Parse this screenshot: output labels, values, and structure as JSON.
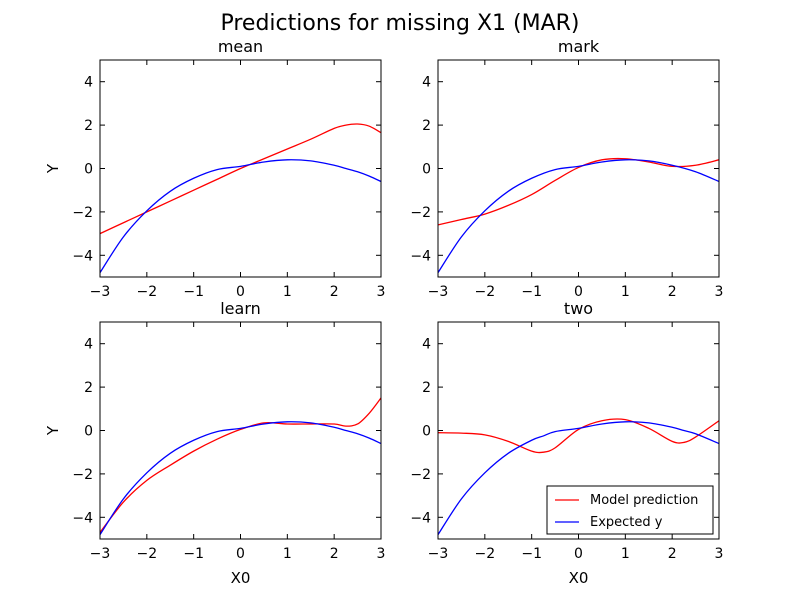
{
  "figure": {
    "title": "Predictions for missing X1 (MAR)"
  },
  "legend": {
    "placement": "lower-right",
    "entries": [
      {
        "label": "Model prediction",
        "color": "#ff0000"
      },
      {
        "label": "Expected y",
        "color": "#0000ff"
      }
    ]
  },
  "chart_data": [
    {
      "type": "line",
      "title": "mean",
      "xlabel": "",
      "ylabel": "Y",
      "xlim": [
        -3,
        3
      ],
      "ylim": [
        -5,
        5
      ],
      "xticks": [
        "−3",
        "−2",
        "−1",
        "0",
        "1",
        "2",
        "3"
      ],
      "yticks": [
        "−4",
        "−2",
        "0",
        "2",
        "4"
      ],
      "x": [
        -3,
        -2.5,
        -2,
        -1.5,
        -1,
        -0.5,
        0,
        0.5,
        1,
        1.5,
        2,
        2.25,
        2.5,
        2.75,
        3
      ],
      "series": [
        {
          "name": "Model prediction",
          "color": "#ff0000",
          "values": [
            -3.0,
            -2.5,
            -2.0,
            -1.5,
            -1.0,
            -0.5,
            0.0,
            0.45,
            0.9,
            1.35,
            1.85,
            2.0,
            2.05,
            1.95,
            1.65
          ]
        },
        {
          "name": "Expected y",
          "color": "#0000ff",
          "values": [
            -4.8,
            -3.15,
            -1.95,
            -1.05,
            -0.45,
            -0.05,
            0.1,
            0.3,
            0.4,
            0.35,
            0.15,
            0.0,
            -0.15,
            -0.35,
            -0.6
          ]
        }
      ]
    },
    {
      "type": "line",
      "title": "mark",
      "xlabel": "",
      "ylabel": "",
      "xlim": [
        -3,
        3
      ],
      "ylim": [
        -5,
        5
      ],
      "xticks": [
        "−3",
        "−2",
        "−1",
        "0",
        "1",
        "2",
        "3"
      ],
      "yticks": [
        "−4",
        "−2",
        "0",
        "2",
        "4"
      ],
      "x": [
        -3,
        -2.5,
        -2,
        -1.5,
        -1,
        -0.5,
        0,
        0.5,
        1,
        1.5,
        2,
        2.5,
        3
      ],
      "series": [
        {
          "name": "Model prediction",
          "color": "#ff0000",
          "values": [
            -2.6,
            -2.35,
            -2.1,
            -1.7,
            -1.2,
            -0.55,
            0.05,
            0.4,
            0.45,
            0.3,
            0.1,
            0.15,
            0.4
          ]
        },
        {
          "name": "Expected y",
          "color": "#0000ff",
          "values": [
            -4.8,
            -3.15,
            -1.95,
            -1.05,
            -0.45,
            -0.05,
            0.1,
            0.3,
            0.4,
            0.35,
            0.15,
            -0.15,
            -0.6
          ]
        }
      ]
    },
    {
      "type": "line",
      "title": "learn",
      "xlabel": "X0",
      "ylabel": "Y",
      "xlim": [
        -3,
        3
      ],
      "ylim": [
        -5,
        5
      ],
      "xticks": [
        "−3",
        "−2",
        "−1",
        "0",
        "1",
        "2",
        "3"
      ],
      "yticks": [
        "−4",
        "−2",
        "0",
        "2",
        "4"
      ],
      "x": [
        -3,
        -2.5,
        -2,
        -1.5,
        -1,
        -0.5,
        0,
        0.5,
        1,
        1.5,
        2,
        2.25,
        2.5,
        2.75,
        3
      ],
      "series": [
        {
          "name": "Model prediction",
          "color": "#ff0000",
          "values": [
            -4.7,
            -3.3,
            -2.3,
            -1.6,
            -0.95,
            -0.4,
            0.05,
            0.35,
            0.3,
            0.3,
            0.3,
            0.2,
            0.3,
            0.8,
            1.5
          ]
        },
        {
          "name": "Expected y",
          "color": "#0000ff",
          "values": [
            -4.8,
            -3.15,
            -1.95,
            -1.05,
            -0.45,
            -0.05,
            0.1,
            0.3,
            0.4,
            0.35,
            0.15,
            0.0,
            -0.15,
            -0.35,
            -0.6
          ]
        }
      ]
    },
    {
      "type": "line",
      "title": "two",
      "xlabel": "X0",
      "ylabel": "",
      "xlim": [
        -3,
        3
      ],
      "ylim": [
        -5,
        5
      ],
      "xticks": [
        "−3",
        "−2",
        "−1",
        "0",
        "1",
        "2",
        "3"
      ],
      "yticks": [
        "−4",
        "−2",
        "0",
        "2",
        "4"
      ],
      "x": [
        -3,
        -2.5,
        -2,
        -1.5,
        -1,
        -0.75,
        -0.5,
        0,
        0.5,
        1,
        1.5,
        2,
        2.25,
        2.5,
        3
      ],
      "series": [
        {
          "name": "Model prediction",
          "color": "#ff0000",
          "values": [
            -0.1,
            -0.12,
            -0.2,
            -0.5,
            -0.95,
            -1.0,
            -0.8,
            0.05,
            0.45,
            0.5,
            0.1,
            -0.5,
            -0.55,
            -0.3,
            0.45
          ]
        },
        {
          "name": "Expected y",
          "color": "#0000ff",
          "values": [
            -4.8,
            -3.15,
            -1.95,
            -1.05,
            -0.45,
            -0.25,
            -0.05,
            0.1,
            0.3,
            0.4,
            0.35,
            0.15,
            0.0,
            -0.15,
            -0.6
          ]
        }
      ]
    }
  ]
}
